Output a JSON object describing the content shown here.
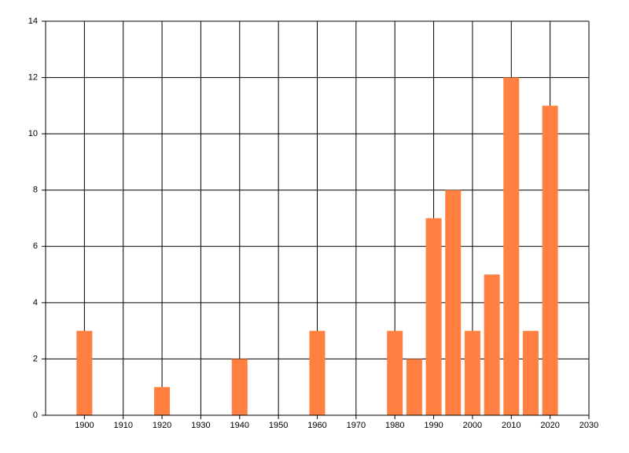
{
  "chart_data": {
    "type": "bar",
    "x": [
      1900,
      1920,
      1940,
      1960,
      1980,
      1985,
      1990,
      1995,
      2000,
      2005,
      2010,
      2015,
      2020
    ],
    "values": [
      3,
      1,
      2,
      3,
      3,
      2,
      7,
      8,
      3,
      5,
      12,
      3,
      11
    ],
    "color": "#ff8040",
    "xlim": [
      1890,
      2030
    ],
    "xticks": [
      1900,
      1910,
      1920,
      1930,
      1940,
      1950,
      1960,
      1970,
      1980,
      1990,
      2000,
      2010,
      2020,
      2030
    ],
    "ylim": [
      0,
      14
    ],
    "yticks": [
      0,
      2,
      4,
      6,
      8,
      10,
      12,
      14
    ],
    "grid": true
  }
}
